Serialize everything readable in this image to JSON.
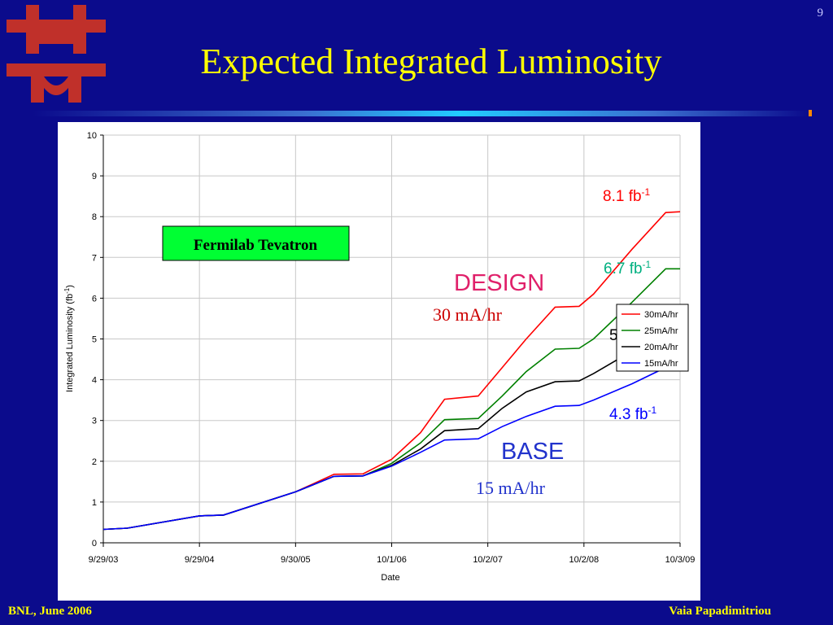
{
  "page_number": "9",
  "title": "Expected Integrated Luminosity",
  "footer": {
    "left": "BNL, June 2006",
    "right": "Vaia Papadimitriou"
  },
  "colors": {
    "background": "#0b0b8c",
    "title": "#ffff00",
    "logo": "#c0302a"
  },
  "logo_icon": "fermilab-logo-icon",
  "chart_data": {
    "type": "line",
    "xlabel": "Date",
    "ylabel": "Integrated Luminosity (fb",
    "ylabel_sup": "-1",
    "ylabel_end": ")",
    "ylim": [
      0,
      10
    ],
    "yticks": [
      0,
      1,
      2,
      3,
      4,
      5,
      6,
      7,
      8,
      9,
      10
    ],
    "xticks": [
      "9/29/03",
      "9/29/04",
      "9/30/05",
      "10/1/06",
      "10/2/07",
      "10/2/08",
      "10/3/09"
    ],
    "x_range": [
      "9/29/03",
      "10/3/09"
    ],
    "grid": "on",
    "legend_position": "right",
    "series": [
      {
        "name": "30mA/hr",
        "color": "#ff0000",
        "x": [
          0,
          0.25,
          1,
          1.25,
          2,
          2.4,
          2.7,
          3,
          3.3,
          3.55,
          3.9,
          4.15,
          4.4,
          4.7,
          4.95,
          5.1,
          5.5,
          5.85,
          6
        ],
        "y": [
          0.33,
          0.36,
          0.66,
          0.68,
          1.25,
          1.68,
          1.69,
          2.05,
          2.7,
          3.52,
          3.6,
          4.3,
          5,
          5.78,
          5.8,
          6.1,
          7.2,
          8.1,
          8.12
        ]
      },
      {
        "name": "25mA/hr",
        "color": "#008000",
        "x": [
          0,
          0.25,
          1,
          1.25,
          2,
          2.4,
          2.7,
          3,
          3.3,
          3.55,
          3.9,
          4.15,
          4.4,
          4.7,
          4.95,
          5.1,
          5.5,
          5.85,
          6
        ],
        "y": [
          0.33,
          0.36,
          0.66,
          0.68,
          1.25,
          1.63,
          1.64,
          1.95,
          2.45,
          3.02,
          3.05,
          3.6,
          4.2,
          4.75,
          4.77,
          5,
          5.9,
          6.72,
          6.72
        ]
      },
      {
        "name": "20mA/hr",
        "color": "#000000",
        "x": [
          0,
          0.25,
          1,
          1.25,
          2,
          2.4,
          2.7,
          3,
          3.3,
          3.55,
          3.9,
          4.15,
          4.4,
          4.7,
          4.95,
          5.1,
          5.5,
          5.85,
          6
        ],
        "y": [
          0.33,
          0.36,
          0.66,
          0.68,
          1.25,
          1.63,
          1.64,
          1.9,
          2.3,
          2.75,
          2.8,
          3.3,
          3.7,
          3.95,
          3.97,
          4.15,
          4.7,
          5.32,
          5.32
        ]
      },
      {
        "name": "15mA/hr",
        "color": "#0000ff",
        "x": [
          0,
          0.25,
          1,
          1.25,
          2,
          2.4,
          2.7,
          3,
          3.3,
          3.55,
          3.9,
          4.15,
          4.4,
          4.7,
          4.95,
          5.1,
          5.5,
          5.85,
          6
        ],
        "y": [
          0.33,
          0.36,
          0.66,
          0.68,
          1.25,
          1.63,
          1.64,
          1.88,
          2.22,
          2.52,
          2.55,
          2.85,
          3.1,
          3.35,
          3.37,
          3.5,
          3.9,
          4.3,
          4.3
        ]
      }
    ],
    "annotations": {
      "box": "Fermilab Tevatron",
      "design": "DESIGN",
      "design_rate": "30 mA/hr",
      "base": "BASE",
      "base_rate": "15 mA/hr",
      "fb_unit": "fb",
      "fb_sup": "-1",
      "values": [
        {
          "value": "8.1",
          "color": "#ff0000"
        },
        {
          "value": "6.7",
          "color": "#00b080"
        },
        {
          "value": "5.3",
          "color": "#000000"
        },
        {
          "value": "4.3",
          "color": "#0000ff"
        }
      ]
    }
  }
}
